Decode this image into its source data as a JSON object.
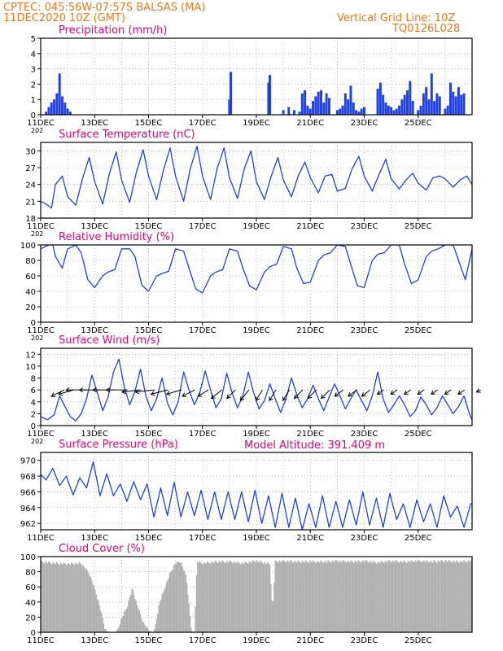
{
  "header": {
    "line1": "CPTEC:   045:56W-07:57S   BALSAS (MA)",
    "line2": "11DEC2020 10Z (GMT)",
    "grid_note": "Vertical Grid Line: 10Z",
    "code": "TQ0126L028",
    "model_altitude": "Model Altitude: 391.409 m"
  },
  "colors": {
    "header": "#f07818",
    "panel_title": "#e8007a",
    "series": "#2040e8",
    "cloud": "#b0b0b0",
    "grid": "#9a9a9a"
  },
  "chart_data": [
    {
      "type": "bar",
      "title": "Precipitation (mm/h)",
      "x_labels": [
        "11DEC",
        "13DEC",
        "15DEC",
        "17DEC",
        "19DEC",
        "21DEC",
        "23DEC",
        "25DEC"
      ],
      "x_stub": "202",
      "y_ticks": [
        0,
        1,
        2,
        3,
        4,
        5
      ],
      "ylim": [
        0,
        5
      ],
      "x": [
        0.2,
        0.3,
        0.4,
        0.5,
        0.6,
        0.7,
        0.8,
        0.9,
        1.0,
        1.1,
        7.0,
        7.05,
        8.45,
        8.5,
        9.0,
        9.2,
        9.4,
        9.6,
        9.7,
        9.8,
        9.9,
        10.0,
        10.1,
        10.2,
        10.3,
        10.4,
        10.5,
        10.6,
        10.7,
        11.0,
        11.1,
        11.2,
        11.3,
        11.4,
        11.5,
        11.6,
        11.7,
        11.8,
        11.9,
        12.0,
        12.5,
        12.6,
        12.7,
        12.8,
        12.9,
        13.0,
        13.1,
        13.2,
        13.3,
        13.4,
        13.5,
        13.6,
        13.7,
        13.8,
        14.0,
        14.1,
        14.2,
        14.3,
        14.4,
        14.5,
        14.6,
        14.7,
        14.8,
        15.0,
        15.1,
        15.2,
        15.3,
        15.4,
        15.5,
        15.6,
        15.7
      ],
      "values": [
        0.2,
        0.5,
        0.8,
        1.0,
        1.4,
        2.7,
        1.2,
        0.8,
        0.4,
        0.2,
        1.0,
        2.8,
        2.1,
        2.6,
        0.3,
        0.5,
        0.3,
        0.2,
        1.4,
        1.6,
        0.6,
        0.4,
        0.9,
        1.2,
        1.5,
        1.6,
        0.8,
        1.4,
        1.1,
        0.3,
        0.4,
        0.6,
        1.4,
        1.0,
        1.9,
        0.8,
        0.3,
        0.2,
        0.4,
        0.5,
        1.7,
        2.1,
        1.3,
        0.8,
        0.6,
        0.5,
        0.3,
        0.4,
        0.6,
        1.0,
        1.3,
        1.6,
        2.2,
        0.9,
        0.3,
        0.6,
        1.4,
        1.8,
        1.0,
        2.7,
        0.9,
        1.4,
        1.2,
        0.4,
        0.6,
        2.1,
        1.5,
        1.2,
        1.8,
        1.3,
        1.4
      ]
    },
    {
      "type": "line",
      "title": "Surface Temperature (nC)",
      "x_labels": [
        "11DEC",
        "13DEC",
        "15DEC",
        "17DEC",
        "19DEC",
        "21DEC",
        "23DEC",
        "25DEC"
      ],
      "x_stub": "202",
      "y_ticks": [
        18,
        21,
        24,
        27,
        30
      ],
      "ylim": [
        18,
        31.5
      ],
      "x": [
        0.0,
        0.2,
        0.4,
        0.55,
        0.8,
        1.0,
        1.3,
        1.55,
        1.8,
        2.0,
        2.3,
        2.55,
        2.8,
        3.0,
        3.3,
        3.55,
        3.8,
        4.0,
        4.3,
        4.55,
        4.8,
        5.0,
        5.3,
        5.55,
        5.8,
        6.0,
        6.3,
        6.55,
        6.8,
        7.0,
        7.3,
        7.55,
        7.8,
        8.0,
        8.3,
        8.55,
        8.8,
        9.0,
        9.3,
        9.55,
        9.8,
        10.0,
        10.3,
        10.55,
        10.8,
        11.0,
        11.3,
        11.55,
        11.8,
        12.0,
        12.3,
        12.55,
        12.8,
        13.0,
        13.3,
        13.55,
        13.8,
        14.0,
        14.3,
        14.55,
        14.8,
        15.0,
        15.3,
        15.55,
        15.8,
        16.0
      ],
      "values": [
        21.0,
        20.5,
        19.8,
        24.0,
        25.5,
        21.8,
        20.3,
        25.0,
        28.8,
        24.5,
        20.5,
        26.0,
        29.8,
        24.8,
        20.8,
        26.2,
        30.2,
        25.5,
        21.3,
        26.5,
        30.5,
        25.5,
        21.0,
        26.8,
        30.8,
        25.5,
        21.3,
        27.0,
        30.5,
        25.2,
        21.5,
        26.8,
        30.0,
        24.5,
        21.3,
        25.5,
        28.8,
        24.8,
        21.8,
        25.5,
        28.0,
        25.2,
        22.5,
        25.5,
        25.8,
        22.8,
        23.3,
        26.8,
        29.0,
        25.5,
        22.8,
        25.8,
        28.5,
        25.0,
        23.2,
        24.8,
        26.0,
        24.2,
        23.0,
        25.2,
        25.5,
        25.0,
        23.5,
        24.8,
        25.5,
        24.0
      ]
    },
    {
      "type": "line",
      "title": "Relative Humidity (%)",
      "x_labels": [
        "11DEC",
        "13DEC",
        "15DEC",
        "17DEC",
        "19DEC",
        "21DEC",
        "23DEC",
        "25DEC"
      ],
      "x_stub": "202",
      "y_ticks": [
        0,
        20,
        40,
        60,
        80,
        100
      ],
      "ylim": [
        0,
        100
      ],
      "x": [
        0.0,
        0.3,
        0.45,
        0.55,
        0.8,
        1.0,
        1.3,
        1.5,
        1.75,
        2.0,
        2.3,
        2.5,
        2.75,
        3.0,
        3.3,
        3.5,
        3.75,
        4.0,
        4.3,
        4.5,
        4.75,
        5.0,
        5.3,
        5.5,
        5.75,
        6.0,
        6.3,
        6.5,
        6.75,
        7.0,
        7.3,
        7.5,
        7.75,
        8.0,
        8.3,
        8.5,
        8.75,
        9.0,
        9.3,
        9.5,
        9.75,
        10.0,
        10.3,
        10.5,
        10.75,
        11.0,
        11.3,
        11.5,
        11.75,
        12.0,
        12.3,
        12.5,
        12.75,
        13.0,
        13.3,
        13.5,
        13.75,
        14.0,
        14.3,
        14.5,
        14.75,
        15.0,
        15.3,
        15.5,
        15.75,
        16.0
      ],
      "values": [
        95,
        100,
        100,
        85,
        70,
        95,
        100,
        90,
        55,
        45,
        60,
        65,
        68,
        95,
        95,
        85,
        48,
        40,
        60,
        63,
        66,
        95,
        92,
        70,
        43,
        38,
        60,
        65,
        68,
        95,
        92,
        70,
        47,
        42,
        65,
        72,
        75,
        98,
        95,
        70,
        50,
        52,
        80,
        87,
        90,
        100,
        98,
        75,
        47,
        45,
        80,
        88,
        90,
        100,
        100,
        75,
        50,
        55,
        85,
        92,
        95,
        100,
        100,
        80,
        55,
        95
      ]
    },
    {
      "type": "line",
      "title": "Surface Wind (m/s)",
      "x_labels": [
        "11DEC",
        "13DEC",
        "15DEC",
        "17DEC",
        "19DEC",
        "21DEC",
        "23DEC",
        "25DEC"
      ],
      "x_stub": "202",
      "y_ticks": [
        0,
        2,
        4,
        6,
        8,
        10,
        12
      ],
      "ylim": [
        0,
        13
      ],
      "x": [
        0.0,
        0.25,
        0.5,
        0.7,
        0.9,
        1.1,
        1.3,
        1.5,
        1.7,
        1.9,
        2.1,
        2.3,
        2.5,
        2.7,
        2.9,
        3.1,
        3.3,
        3.5,
        3.7,
        3.9,
        4.1,
        4.3,
        4.5,
        4.7,
        4.9,
        5.1,
        5.3,
        5.5,
        5.7,
        5.9,
        6.1,
        6.3,
        6.5,
        6.7,
        6.9,
        7.1,
        7.3,
        7.5,
        7.7,
        7.9,
        8.1,
        8.3,
        8.5,
        8.7,
        8.9,
        9.1,
        9.3,
        9.5,
        9.7,
        9.9,
        10.1,
        10.3,
        10.5,
        10.7,
        10.9,
        11.1,
        11.3,
        11.5,
        11.7,
        11.9,
        12.1,
        12.3,
        12.5,
        12.7,
        12.9,
        13.1,
        13.3,
        13.5,
        13.7,
        13.9,
        14.1,
        14.3,
        14.5,
        14.7,
        14.9,
        15.1,
        15.3,
        15.5,
        15.7,
        15.9,
        16.0
      ],
      "values": [
        1.5,
        1.0,
        1.8,
        5.0,
        3.2,
        1.5,
        0.8,
        2.0,
        4.5,
        8.5,
        5.5,
        2.5,
        4.8,
        9.0,
        11.2,
        6.5,
        3.5,
        5.8,
        9.5,
        5.0,
        2.5,
        4.5,
        8.0,
        3.8,
        1.8,
        4.0,
        9.0,
        6.0,
        3.5,
        5.5,
        9.2,
        6.0,
        3.0,
        4.5,
        8.8,
        5.5,
        3.0,
        5.0,
        9.0,
        5.5,
        2.8,
        4.2,
        7.0,
        4.5,
        2.2,
        4.5,
        8.0,
        5.2,
        3.0,
        4.5,
        6.8,
        4.5,
        2.5,
        4.8,
        7.0,
        5.0,
        2.8,
        4.5,
        6.0,
        4.2,
        2.5,
        5.0,
        9.0,
        4.5,
        2.2,
        3.5,
        5.0,
        3.5,
        1.5,
        2.5,
        4.8,
        3.5,
        1.8,
        3.0,
        5.0,
        3.5,
        2.0,
        3.2,
        5.0,
        2.0,
        1.0
      ]
    },
    {
      "type": "line",
      "title": "Surface Pressure (hPa)",
      "x_labels": [
        "11DEC",
        "13DEC",
        "15DEC",
        "17DEC",
        "19DEC",
        "21DEC",
        "23DEC",
        "25DEC"
      ],
      "x_stub": "",
      "y_ticks": [
        962,
        964,
        966,
        968,
        970
      ],
      "ylim": [
        961.2,
        971.0
      ],
      "x": [
        0.0,
        0.2,
        0.45,
        0.7,
        0.95,
        1.2,
        1.45,
        1.7,
        1.95,
        2.2,
        2.45,
        2.7,
        2.95,
        3.2,
        3.45,
        3.7,
        3.95,
        4.2,
        4.45,
        4.7,
        4.95,
        5.2,
        5.45,
        5.7,
        5.95,
        6.2,
        6.45,
        6.7,
        6.95,
        7.2,
        7.45,
        7.7,
        7.95,
        8.2,
        8.45,
        8.7,
        8.95,
        9.2,
        9.45,
        9.7,
        9.95,
        10.2,
        10.45,
        10.7,
        10.95,
        11.2,
        11.45,
        11.7,
        11.95,
        12.2,
        12.45,
        12.7,
        12.95,
        13.2,
        13.45,
        13.7,
        13.95,
        14.2,
        14.45,
        14.7,
        14.95,
        15.2,
        15.45,
        15.7,
        15.95,
        16.0
      ],
      "values": [
        968.2,
        967.5,
        969.0,
        966.8,
        968.0,
        965.6,
        967.8,
        966.5,
        969.8,
        965.5,
        968.3,
        965.5,
        967.0,
        964.8,
        967.3,
        965.0,
        967.0,
        962.8,
        966.5,
        963.0,
        967.2,
        962.8,
        966.0,
        963.0,
        966.2,
        962.5,
        966.0,
        962.5,
        966.0,
        962.5,
        966.0,
        962.2,
        966.2,
        962.0,
        965.5,
        961.5,
        965.8,
        961.5,
        965.2,
        961.2,
        964.5,
        961.5,
        965.5,
        961.5,
        964.8,
        961.5,
        965.0,
        961.8,
        966.0,
        961.8,
        965.2,
        961.5,
        965.8,
        962.5,
        964.5,
        961.5,
        965.0,
        962.2,
        964.5,
        961.5,
        965.5,
        962.8,
        964.2,
        961.5,
        964.5,
        964.5
      ]
    },
    {
      "type": "area",
      "title": "Cloud Cover (%)",
      "x_labels": [
        "11DEC",
        "13DEC",
        "15DEC",
        "17DEC",
        "19DEC",
        "21DEC",
        "23DEC",
        "25DEC"
      ],
      "x_stub": "",
      "y_ticks": [
        0,
        20,
        40,
        60,
        80,
        100
      ],
      "ylim": [
        0,
        100
      ],
      "x": [
        0.0,
        0.5,
        1.0,
        1.5,
        1.8,
        2.0,
        2.2,
        2.4,
        2.6,
        2.8,
        3.0,
        3.2,
        3.4,
        3.6,
        3.8,
        4.0,
        4.2,
        4.4,
        4.6,
        4.8,
        5.0,
        5.2,
        5.4,
        5.6,
        5.7,
        5.8,
        6.0,
        6.5,
        7.0,
        7.5,
        8.0,
        8.5,
        8.6,
        8.7,
        9.0,
        9.5,
        10.0,
        10.5,
        11.0,
        11.5,
        12.0,
        12.5,
        13.0,
        13.5,
        14.0,
        14.5,
        15.0,
        15.5,
        16.0
      ],
      "values": [
        95,
        93,
        92,
        93,
        80,
        60,
        35,
        5,
        0,
        0,
        20,
        35,
        60,
        35,
        15,
        5,
        0,
        40,
        60,
        80,
        93,
        95,
        75,
        2,
        0,
        95,
        93,
        95,
        95,
        93,
        96,
        92,
        30,
        95,
        96,
        95,
        95,
        95,
        96,
        95,
        96,
        94,
        96,
        95,
        96,
        95,
        96,
        95,
        96
      ]
    }
  ],
  "wind_vectors": {
    "x": [
      0.45,
      0.8,
      1.3,
      1.8,
      2.3,
      2.8,
      3.3,
      3.8,
      4.3,
      4.8,
      5.3,
      5.8,
      6.3,
      6.8,
      7.3,
      7.8,
      8.3,
      8.8,
      9.3,
      9.8,
      10.3,
      10.8,
      11.3,
      11.8,
      12.3,
      12.8,
      13.3,
      13.8,
      14.3,
      14.8,
      15.3,
      15.9
    ],
    "dx": [
      -0.6,
      -0.7,
      -1.0,
      -1.0,
      -1.0,
      -1.0,
      -0.9,
      -0.9,
      -0.8,
      -0.7,
      -0.6,
      -0.5,
      -0.5,
      -0.4,
      -0.4,
      -0.3,
      -0.3,
      -0.3,
      -0.4,
      -0.4,
      -0.4,
      -0.4,
      -0.4,
      -0.4,
      -0.3,
      -0.3,
      -0.3,
      -0.3,
      -0.3,
      -0.3,
      -0.3,
      -0.2
    ],
    "dy": [
      -0.3,
      -0.2,
      0.0,
      0.0,
      0.0,
      0.0,
      -0.1,
      -0.1,
      -0.2,
      -0.2,
      -0.3,
      -0.3,
      -0.4,
      -0.4,
      -0.5,
      -0.5,
      -0.5,
      -0.5,
      -0.4,
      -0.4,
      -0.4,
      -0.3,
      -0.3,
      -0.3,
      -0.2,
      -0.2,
      -0.2,
      -0.2,
      -0.2,
      -0.2,
      -0.2,
      -0.1
    ]
  }
}
